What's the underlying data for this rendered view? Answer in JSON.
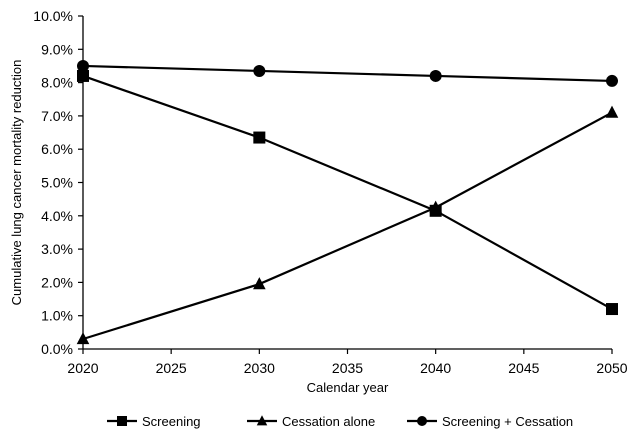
{
  "chart_data": {
    "type": "line",
    "title": "",
    "xlabel": "Calendar year",
    "ylabel": "Cumulative lung cancer mortality reduction",
    "x": [
      2020,
      2030,
      2040,
      2050
    ],
    "xlim": [
      2020,
      2050
    ],
    "xticks": [
      "2020",
      "2025",
      "2030",
      "2035",
      "2040",
      "2045",
      "2050"
    ],
    "xtick_values": [
      2020,
      2025,
      2030,
      2035,
      2040,
      2045,
      2050
    ],
    "ylim": [
      0,
      10
    ],
    "yticks": [
      "0.0%",
      "1.0%",
      "2.0%",
      "3.0%",
      "4.0%",
      "5.0%",
      "6.0%",
      "7.0%",
      "8.0%",
      "9.0%",
      "10.0%"
    ],
    "ytick_values": [
      0,
      1,
      2,
      3,
      4,
      5,
      6,
      7,
      8,
      9,
      10
    ],
    "grid": false,
    "legend_position": "bottom",
    "series": [
      {
        "name": "Screening",
        "marker": "square",
        "values": [
          8.2,
          6.35,
          4.15,
          1.2
        ]
      },
      {
        "name": "Cessation alone",
        "marker": "triangle",
        "values": [
          0.3,
          1.95,
          4.25,
          7.1
        ]
      },
      {
        "name": "Screening + Cessation",
        "marker": "circle",
        "values": [
          8.5,
          8.35,
          8.2,
          8.05
        ]
      }
    ],
    "color": "#000000"
  }
}
